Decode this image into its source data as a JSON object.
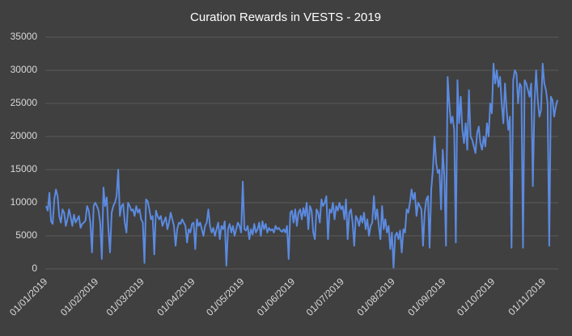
{
  "chart_data": {
    "type": "line",
    "title": "Curation Rewards in VESTS - 2019",
    "categories": [
      "01/01/2019",
      null,
      null,
      null,
      null,
      null,
      null,
      null,
      null,
      null,
      null,
      null,
      null,
      null,
      null,
      null,
      null,
      null,
      null,
      null,
      null,
      null,
      null,
      null,
      null,
      null,
      null,
      null,
      null,
      null,
      null,
      "01/02/2019",
      null,
      null,
      null,
      null,
      null,
      null,
      null,
      null,
      null,
      null,
      null,
      null,
      null,
      null,
      null,
      null,
      null,
      null,
      null,
      null,
      null,
      null,
      null,
      null,
      null,
      null,
      null,
      "01/03/2019",
      null,
      null,
      null,
      null,
      null,
      null,
      null,
      null,
      null,
      null,
      null,
      null,
      null,
      null,
      null,
      null,
      null,
      null,
      null,
      null,
      null,
      null,
      null,
      null,
      null,
      null,
      null,
      null,
      null,
      null,
      "01/04/2019",
      null,
      null,
      null,
      null,
      null,
      null,
      null,
      null,
      null,
      null,
      null,
      null,
      null,
      null,
      null,
      null,
      null,
      null,
      null,
      null,
      null,
      null,
      null,
      null,
      null,
      null,
      null,
      null,
      null,
      "01/05/2019",
      null,
      null,
      null,
      null,
      null,
      null,
      null,
      null,
      null,
      null,
      null,
      null,
      null,
      null,
      null,
      null,
      null,
      null,
      null,
      null,
      null,
      null,
      null,
      null,
      null,
      null,
      null,
      null,
      null,
      null,
      "01/06/2019",
      null,
      null,
      null,
      null,
      null,
      null,
      null,
      null,
      null,
      null,
      null,
      null,
      null,
      null,
      null,
      null,
      null,
      null,
      null,
      null,
      null,
      null,
      null,
      null,
      null,
      null,
      null,
      null,
      null,
      "01/07/2019",
      null,
      null,
      null,
      null,
      null,
      null,
      null,
      null,
      null,
      null,
      null,
      null,
      null,
      null,
      null,
      null,
      null,
      null,
      null,
      null,
      null,
      null,
      null,
      null,
      null,
      null,
      null,
      null,
      null,
      null,
      "01/08/2019",
      null,
      null,
      null,
      null,
      null,
      null,
      null,
      null,
      null,
      null,
      null,
      null,
      null,
      null,
      null,
      null,
      null,
      null,
      null,
      null,
      null,
      null,
      null,
      null,
      null,
      null,
      null,
      null,
      null,
      null,
      "01/09/2019",
      null,
      null,
      null,
      null,
      null,
      null,
      null,
      null,
      null,
      null,
      null,
      null,
      null,
      null,
      null,
      null,
      null,
      null,
      null,
      null,
      null,
      null,
      null,
      null,
      null,
      null,
      null,
      null,
      null,
      "01/10/2019",
      null,
      null,
      null,
      null,
      null,
      null,
      null,
      null,
      null,
      null,
      null,
      null,
      null,
      null,
      null,
      null,
      null,
      null,
      null,
      null,
      null,
      null,
      null,
      null,
      null,
      null,
      null,
      null,
      null,
      null,
      "01/11/2019",
      null,
      null,
      null,
      null,
      null,
      null,
      null,
      null
    ],
    "series": [
      {
        "color": "#5b8ae0",
        "values": [
          9500,
          8800,
          11500,
          7200,
          6800,
          10500,
          12000,
          11000,
          8000,
          7000,
          9000,
          8500,
          6500,
          7500,
          9000,
          7800,
          6500,
          8200,
          7000,
          7500,
          8000,
          6200,
          6800,
          7000,
          7300,
          9500,
          8800,
          7000,
          2500,
          9500,
          10000,
          9500,
          8800,
          7000,
          1500,
          12300,
          9500,
          10800,
          6000,
          2500,
          8500,
          9500,
          10000,
          11000,
          15000,
          8000,
          9500,
          9800,
          7000,
          5500,
          10000,
          9500,
          8800,
          9000,
          8000,
          9500,
          8500,
          9000,
          7500,
          7000,
          900,
          10500,
          10200,
          9000,
          7500,
          8000,
          2200,
          8800,
          8000,
          7500,
          8000,
          6500,
          7200,
          7800,
          6000,
          7000,
          8500,
          7500,
          6500,
          3500,
          6000,
          7000,
          6800,
          7500,
          7000,
          6500,
          4000,
          6000,
          5500,
          6800,
          7000,
          3000,
          7500,
          6500,
          7000,
          6000,
          5000,
          6500,
          7000,
          9000,
          6500,
          5500,
          6200,
          5000,
          6000,
          7000,
          4500,
          6500,
          6000,
          7200,
          500,
          6000,
          6800,
          5500,
          6500,
          5000,
          6000,
          7000,
          6500,
          5500,
          13200,
          6000,
          5800,
          6500,
          4500,
          6000,
          5200,
          6800,
          5500,
          6000,
          7000,
          5000,
          7200,
          6000,
          6800,
          5500,
          6200,
          5800,
          6000,
          5500,
          6500,
          6000,
          6200,
          5800,
          5600,
          6000,
          5500,
          6500,
          1500,
          8500,
          8800,
          7000,
          9000,
          6500,
          8500,
          9000,
          7500,
          9200,
          8000,
          10000,
          6000,
          9500,
          8800,
          5500,
          4500,
          9000,
          8500,
          7000,
          10500,
          9500,
          10000,
          11000,
          4500,
          9000,
          8500,
          10000,
          7500,
          9500,
          8800,
          10000,
          9000,
          9500,
          7500,
          10500,
          4500,
          8500,
          9000,
          7000,
          3500,
          8000,
          7500,
          6500,
          8000,
          7000,
          8500,
          6000,
          7500,
          5000,
          6500,
          7000,
          11000,
          7500,
          9000,
          6500,
          4500,
          9500,
          6000,
          7500,
          5500,
          6500,
          3000,
          5500,
          200,
          5000,
          5500,
          4500,
          5800,
          2500,
          6000,
          5500,
          9000,
          8500,
          10000,
          12000,
          10500,
          11500,
          8000,
          10000,
          9500,
          9000,
          3500,
          8500,
          10500,
          11000,
          3200,
          12000,
          15000,
          20000,
          16000,
          14500,
          15000,
          9000,
          18000,
          14000,
          3500,
          29000,
          25000,
          22000,
          23000,
          21000,
          4000,
          28500,
          22000,
          26000,
          21000,
          19000,
          22000,
          18000,
          27000,
          20000,
          19500,
          18500,
          17500,
          20500,
          21500,
          19000,
          18000,
          20000,
          18500,
          22000,
          20000,
          25000,
          23500,
          31000,
          28000,
          30000,
          27500,
          29000,
          25000,
          22000,
          28000,
          24000,
          21000,
          23000,
          3200,
          28500,
          30000,
          29500,
          25000,
          28000,
          27500,
          3200,
          28500,
          28000,
          27000,
          26000,
          28000,
          12500,
          25000,
          30000,
          25500,
          23000,
          24000,
          31000,
          28000,
          27000,
          25000,
          3500,
          26000,
          25500,
          23000,
          24500,
          25500
        ]
      }
    ],
    "ylim": [
      0,
      35000
    ],
    "yticks": [
      0,
      5000,
      10000,
      15000,
      20000,
      25000,
      30000,
      35000
    ],
    "grid": true
  }
}
